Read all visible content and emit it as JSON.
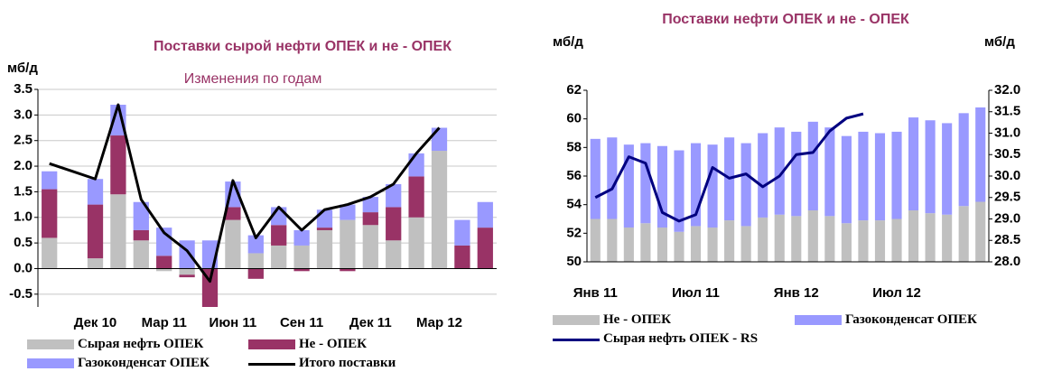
{
  "chart_data": [
    {
      "type": "bar",
      "stacked": true,
      "title": "Поставки сырой нефти ОПЕК и  не - ОПЕК",
      "subtitle": "Изменения по годам",
      "y_label": "мб/д",
      "categories": [
        null,
        null,
        "Дек 10",
        null,
        null,
        "Мар 11",
        null,
        null,
        "Июн 11",
        null,
        null,
        "Сен 11",
        null,
        null,
        "Дек 11",
        null,
        null,
        "Мар 12",
        null,
        null
      ],
      "series": [
        {
          "name": "Сырая нефть ОПЕК",
          "color": "#c0c0c0",
          "values": [
            0.6,
            null,
            0.2,
            1.45,
            0.55,
            -0.05,
            -0.12,
            0,
            0.95,
            0.3,
            0.45,
            0.45,
            0.75,
            0.95,
            0.85,
            0.55,
            1.0,
            2.3,
            null,
            null
          ]
        },
        {
          "name": "Не - ОПЕК",
          "color": "#993366",
          "values": [
            0.95,
            null,
            1.05,
            1.15,
            0.2,
            0.25,
            -0.05,
            -0.75,
            0.25,
            -0.2,
            0.4,
            -0.05,
            0.05,
            -0.05,
            0.25,
            0.65,
            0.8,
            0,
            0.45,
            0.8
          ]
        },
        {
          "name": "Газоконденсат ОПЕК",
          "color": "#9999ff",
          "values": [
            0.35,
            null,
            0.5,
            0.6,
            0.55,
            0.55,
            0.55,
            0.55,
            0.5,
            0.35,
            0.35,
            0.3,
            0.35,
            0.3,
            0.3,
            0.45,
            0.45,
            0.45,
            0.5,
            0.5
          ]
        },
        {
          "name": "Итого поставки",
          "type": "line",
          "color": "#000000",
          "values": [
            2.05,
            1.9,
            1.75,
            3.2,
            1.35,
            0.7,
            0.35,
            -0.25,
            1.72,
            0.6,
            1.2,
            0.75,
            1.15,
            1.25,
            1.4,
            1.65,
            2.25,
            2.75,
            null,
            null
          ]
        }
      ],
      "ylim": [
        -0.75,
        3.5
      ],
      "yticks": [
        -0.5,
        {
          "value": 0,
          "label": "0.0"
        },
        0.5,
        {
          "value": 1,
          "label": "1.0"
        },
        1.5,
        {
          "value": 2,
          "label": "2.0"
        },
        2.5,
        {
          "value": 3,
          "label": "3.0"
        },
        3.5
      ],
      "grid": true
    },
    {
      "type": "bar",
      "stacked": true,
      "title": "Поставки нефти ОПЕК и  не - ОПЕК",
      "y_label": "мб/д",
      "y2_label": "мб/д",
      "categories": [
        "Янв 11",
        null,
        null,
        null,
        null,
        null,
        "Июл 11",
        null,
        null,
        null,
        null,
        null,
        "Янв 12",
        null,
        null,
        null,
        null,
        null,
        "Июл 12",
        null,
        null,
        null,
        null,
        null
      ],
      "series": [
        {
          "name": "Не - ОПЕК",
          "color": "#c0c0c0",
          "values": [
            53.0,
            53.0,
            52.4,
            52.7,
            52.4,
            52.1,
            52.5,
            52.4,
            52.9,
            52.5,
            53.1,
            53.3,
            53.2,
            53.6,
            53.2,
            52.7,
            52.9,
            52.9,
            53.0,
            53.6,
            53.4,
            53.3,
            53.9,
            54.2
          ]
        },
        {
          "name": "Газоконденсат ОПЕК",
          "color": "#9999ff",
          "values": [
            5.6,
            5.7,
            5.8,
            5.6,
            5.7,
            5.7,
            5.8,
            5.8,
            5.8,
            5.8,
            5.9,
            6.1,
            5.9,
            6.2,
            6.2,
            6.1,
            6.2,
            6.1,
            6.1,
            6.5,
            6.5,
            6.4,
            6.5,
            6.6
          ]
        },
        {
          "name": "Сырая нефть ОПЕК - RS",
          "type": "line",
          "axis": "y2",
          "color": "#000080",
          "values": [
            29.5,
            29.7,
            30.45,
            30.3,
            29.15,
            28.95,
            29.1,
            30.2,
            29.95,
            30.05,
            29.75,
            30.0,
            30.5,
            30.55,
            31.05,
            31.35,
            31.45,
            null,
            null,
            null,
            null,
            null,
            null,
            null
          ]
        }
      ],
      "ylim": [
        50,
        62
      ],
      "yticks": [
        50,
        52,
        54,
        56,
        58,
        60,
        62
      ],
      "y2lim": [
        28,
        32
      ],
      "y2ticks": [
        {
          "value": 28,
          "label": "28.0"
        },
        28.5,
        {
          "value": 29,
          "label": "29.0"
        },
        29.5,
        {
          "value": 30,
          "label": "30.0"
        },
        30.5,
        {
          "value": 31,
          "label": "31.0"
        },
        31.5,
        {
          "value": 32,
          "label": "32.0"
        }
      ],
      "grid": false
    }
  ]
}
